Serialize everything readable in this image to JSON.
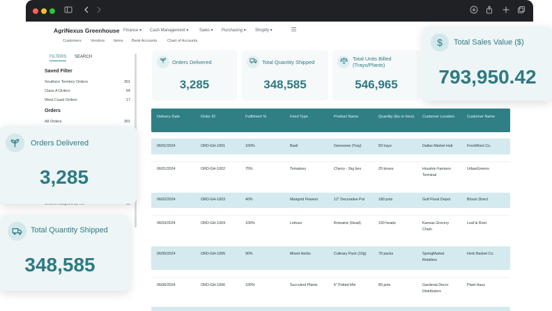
{
  "browser": {
    "icons": [
      "sidebar-icon",
      "back-icon",
      "forward-icon",
      "download-icon",
      "share-icon",
      "new-tab-icon",
      "tabs-icon"
    ]
  },
  "app": {
    "brand": "AgriNexus Greenhouse",
    "menu": [
      "Finance",
      "Cash Management",
      "Sales",
      "Purchasing",
      "Shopify"
    ],
    "submenu": [
      "Customers",
      "Vendors",
      "Items",
      "Bank Accounts",
      "Chart of Accounts"
    ]
  },
  "filters": {
    "tabs": [
      "FILTERS",
      "SEARCH"
    ],
    "saved_title": "Saved Filter",
    "saved": [
      {
        "label": "Southern Territory Orders",
        "count": "301"
      },
      {
        "label": "Class A Orders",
        "count": "54"
      },
      {
        "label": "West Coast Orders",
        "count": "17"
      }
    ],
    "orders_title": "Orders",
    "orders": [
      {
        "label": "All Orders",
        "count": "301"
      },
      {
        "label": "Orders Assigned by me",
        "count": "05"
      }
    ]
  },
  "cards": [
    {
      "icon": "sprout-icon",
      "label": "Orders Delivered",
      "value": "3,285"
    },
    {
      "icon": "truck-icon",
      "label": "Total Quantity Shipped",
      "value": "348,585"
    },
    {
      "icon": "scale-icon",
      "label": "Total Units Billed (Trays/Plants)",
      "value": "546,965"
    }
  ],
  "floating": {
    "sales": {
      "icon": "dollar-icon",
      "label": "Total Sales Value ($)",
      "value": "793,950.42"
    },
    "delivered": {
      "icon": "sprout-icon",
      "label": "Orders Delivered",
      "value": "3,285"
    },
    "shipped": {
      "icon": "truck-icon",
      "label": "Total Quantity Shipped",
      "value": "348,585"
    }
  },
  "table": {
    "headers": [
      "Delivery Date",
      "Order ID",
      "Fulfilment %",
      "Feed Type",
      "Product Name",
      "Quantity (lbs or tons)",
      "Customer Location",
      "Customer Name"
    ],
    "rows": [
      [
        "06/01/2024",
        "ORD-GH-1001",
        "100%",
        "Basil",
        "Genovese (Tray)",
        "50 trays",
        "Dallas Market Hub",
        "FreshRoot Co."
      ],
      [
        "06/01/2024",
        "ORD-GH-1002",
        "75%",
        "Tomatoes",
        "Cherry - 2kg box",
        "25 boxes",
        "Houston Farmers Terminal",
        "UrbanGreens"
      ],
      [
        "06/02/2024",
        "ORD-GH-1003",
        "40%",
        "Marigold Flowers",
        "12\" Decorative Pot",
        "180 pots",
        "Gulf Floral Depot",
        "Bloom Direct"
      ],
      [
        "06/03/2024",
        "ORD-GH-1004",
        "100%",
        "Lettuce",
        "Romaine (Head)",
        "150 heads",
        "Kansas Grocery Chain",
        "Leaf & Root"
      ],
      [
        "06/05/2024",
        "ORD-GH-1005",
        "90%",
        "Mixed Herbs",
        "Culinary Pack (10g)",
        "70 packs",
        "SpringMarket Retailers",
        "Herb Basket Co."
      ],
      [
        "06/06/2024",
        "ORD-GH-1006",
        "100%",
        "Succulent Plants",
        "6\" Potted Mix",
        "80 pots",
        "Gardenia Decor Distributors",
        "Plant Haus"
      ]
    ]
  }
}
